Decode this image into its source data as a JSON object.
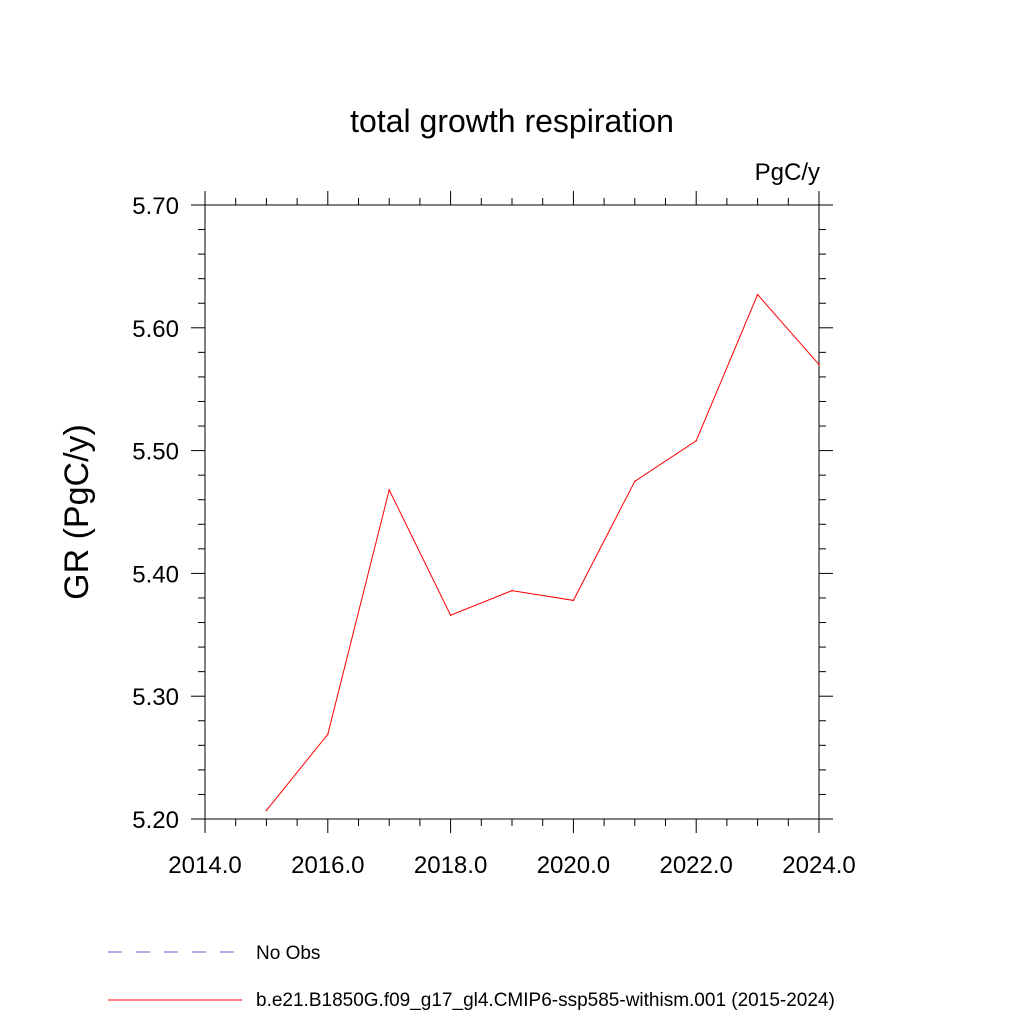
{
  "chart_data": {
    "type": "line",
    "title": "total growth respiration",
    "units": "PgC/y",
    "xlabel": "",
    "ylabel": "GR  (PgC/y)",
    "xlim": [
      2014.0,
      2024.0
    ],
    "ylim": [
      5.2,
      5.7
    ],
    "x_ticks": [
      2014.0,
      2016.0,
      2018.0,
      2020.0,
      2022.0,
      2024.0
    ],
    "x_tick_labels": [
      "2014.0",
      "2016.0",
      "2018.0",
      "2020.0",
      "2022.0",
      "2024.0"
    ],
    "y_ticks": [
      5.2,
      5.3,
      5.4,
      5.5,
      5.6,
      5.7
    ],
    "y_tick_labels": [
      "5.20",
      "5.30",
      "5.40",
      "5.50",
      "5.60",
      "5.70"
    ],
    "grid": false,
    "legend_position": "bottom-left",
    "series": [
      {
        "name": "b.e21.B1850G.f09_g17_gl4.CMIP6-ssp585-withism.001 (2015-2024)",
        "color": "#ff0000",
        "style": "solid",
        "x": [
          2015,
          2016,
          2017,
          2018,
          2019,
          2020,
          2021,
          2022,
          2023,
          2024
        ],
        "y": [
          5.207,
          5.269,
          5.468,
          5.366,
          5.386,
          5.378,
          5.475,
          5.508,
          5.627,
          5.57
        ]
      }
    ],
    "legend": [
      {
        "label": "No Obs",
        "color": "#6a5acd",
        "style": "dashed"
      },
      {
        "label": "b.e21.B1850G.f09_g17_gl4.CMIP6-ssp585-withism.001 (2015-2024)",
        "color": "#ff0000",
        "style": "solid"
      }
    ]
  }
}
